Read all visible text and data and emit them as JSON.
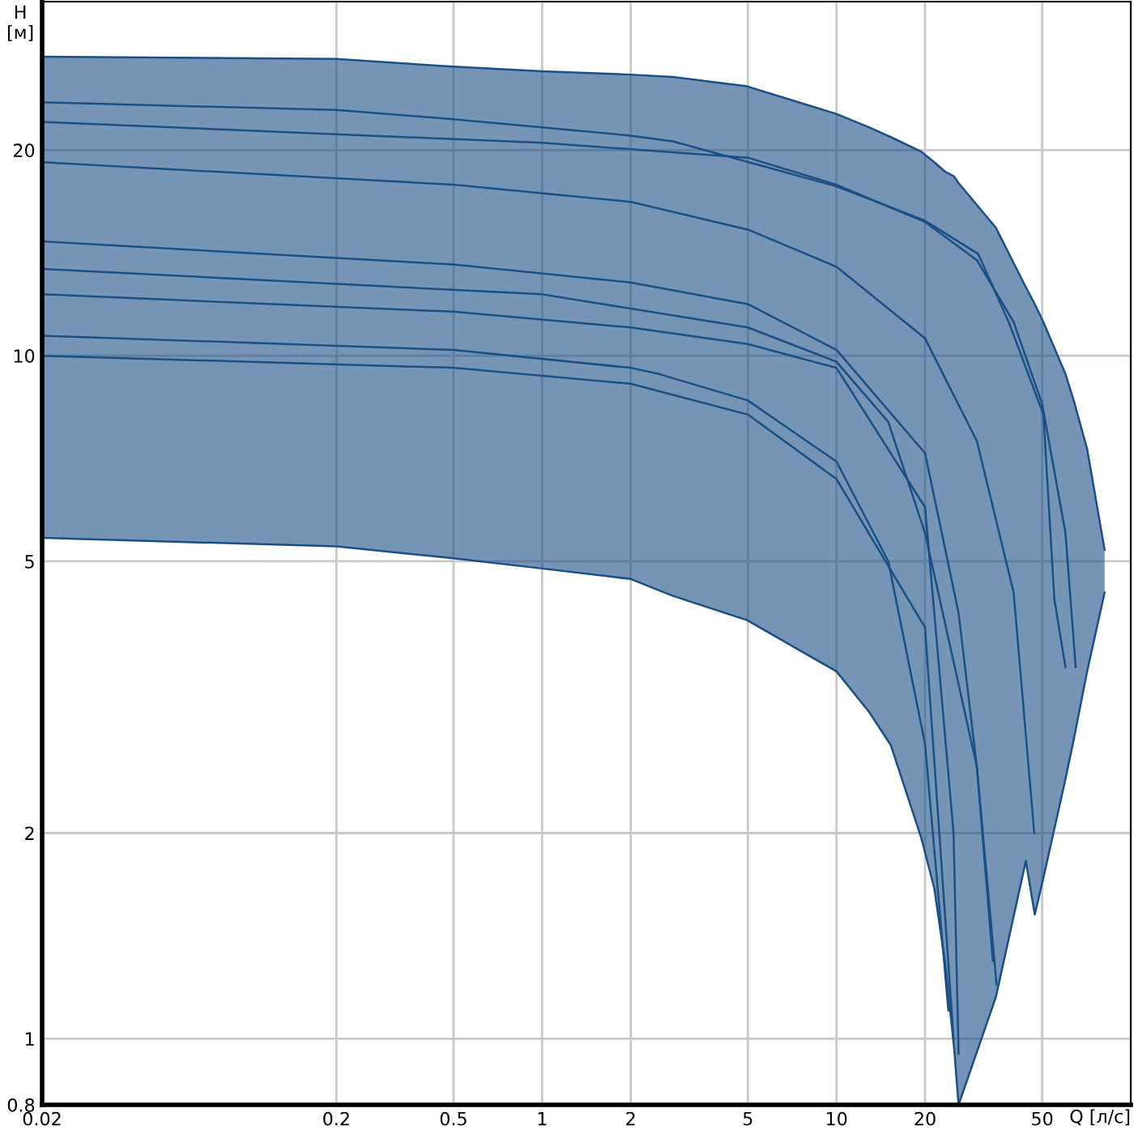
{
  "chart_data": {
    "type": "line",
    "xlabel": "Q [л/с]",
    "ylabel": "H [м]",
    "log": "xy",
    "grid": true,
    "legend": false,
    "marker": "none",
    "line_style": "solid",
    "xlim": [
      0.02,
      100
    ],
    "xticks": [
      0.02,
      0.2,
      0.5,
      1,
      2,
      5,
      10,
      20,
      50
    ],
    "ylim": [
      0.8,
      33
    ],
    "yticks": [
      0.8,
      1,
      2,
      5,
      10,
      20
    ],
    "series": [
      {
        "color": "#1a4f86",
        "x": [
          0.02,
          0.2,
          0.5,
          1,
          2,
          2.78,
          4.97,
          10,
          12.9,
          15.3,
          19.4,
          21.5,
          23.4,
          25.1,
          26,
          34.8,
          44,
          47.2,
          50.5,
          60,
          64,
          71.1,
          81.5
        ],
        "values": [
          27.4,
          27.2,
          26.5,
          26.1,
          25.8,
          25.6,
          24.8,
          22.6,
          21.6,
          20.9,
          19.9,
          19.2,
          18.6,
          18.3,
          17.9,
          15.4,
          12.6,
          11.9,
          11.2,
          9.4,
          8.6,
          7.3,
          5.2
        ],
        "upper": [
          27.4,
          27.2,
          26.5,
          26.1,
          25.8,
          25.6,
          24.8,
          22.6,
          21.6,
          20.9,
          19.9,
          19.2,
          18.6,
          18.3,
          17.9,
          15.4,
          12.6,
          11.9,
          11.2,
          9.4,
          8.6,
          7.3,
          5.2
        ],
        "lower": [
          5.41,
          5.26,
          5.05,
          4.88,
          4.71,
          4.45,
          4.1,
          3.45,
          3.01,
          2.69,
          1.97,
          1.66,
          1.29,
          0.97,
          0.8,
          1.15,
          1.82,
          1.52,
          1.72,
          2.4,
          2.74,
          3.45,
          4.5
        ]
      },
      {
        "color": "#1a4f86",
        "x": [
          0.02,
          0.2,
          0.5,
          1,
          2,
          2.78,
          4.97,
          10,
          12.9,
          15.3,
          19.4,
          21.5,
          23.4,
          25.1,
          26,
          34.8,
          44,
          47.2,
          50.5,
          60,
          64,
          71.1,
          81.5
        ],
        "values": [
          5.41,
          5.26,
          5.05,
          4.88,
          4.71,
          4.45,
          4.1,
          3.45,
          3.01,
          2.69,
          1.97,
          1.66,
          1.29,
          0.97,
          0.8,
          1.15,
          1.82,
          1.52,
          1.72,
          2.4,
          2.74,
          3.45,
          4.5
        ]
      },
      {
        "color": "#1a4f86",
        "x": [
          0.02,
          1,
          5,
          10,
          20,
          30,
          40,
          50,
          60,
          65
        ],
        "values": [
          22,
          20.5,
          19.5,
          17.8,
          15.7,
          13.8,
          11.2,
          8.5,
          5.5,
          3.5
        ]
      },
      {
        "color": "#1a4f86",
        "x": [
          0.02,
          0.2,
          0.5,
          1,
          2,
          2.78,
          10,
          19.8,
          30.3,
          38.5,
          50.5,
          55,
          60
        ],
        "values": [
          23.5,
          22.9,
          22.2,
          21.6,
          21.0,
          20.6,
          17.7,
          15.8,
          14.1,
          11.2,
          8.2,
          4.4,
          3.5
        ]
      },
      {
        "color": "#1a4f86",
        "x": [
          0.02,
          0.5,
          2,
          5,
          10,
          20,
          30,
          40,
          47
        ],
        "values": [
          19.2,
          17.8,
          16.8,
          15.3,
          13.5,
          10.6,
          7.5,
          4.5,
          2.0
        ]
      },
      {
        "color": "#1a4f86",
        "x": [
          0.02,
          0.5,
          2,
          5,
          10,
          20,
          26,
          30,
          35
        ],
        "values": [
          14.7,
          13.6,
          12.8,
          11.9,
          10.2,
          7.2,
          4.2,
          2.5,
          1.2
        ]
      },
      {
        "color": "#1a4f86",
        "x": [
          0.02,
          1,
          5,
          10,
          15,
          20,
          30,
          34
        ],
        "values": [
          13.4,
          12.3,
          11.0,
          9.8,
          8.0,
          5.5,
          2.5,
          1.3
        ]
      },
      {
        "color": "#1a4f86",
        "x": [
          0.02,
          0.5,
          2,
          5,
          10,
          20,
          25,
          26
        ],
        "values": [
          12.3,
          11.6,
          11.0,
          10.4,
          9.6,
          6.0,
          2.0,
          0.95
        ]
      },
      {
        "color": "#1a4f86",
        "x": [
          0.02,
          0.5,
          2,
          2.5,
          5,
          10,
          15,
          20,
          24
        ],
        "values": [
          10.7,
          10.2,
          9.6,
          9.4,
          8.6,
          7.0,
          5.0,
          2.7,
          1.1
        ]
      },
      {
        "color": "#1a4f86",
        "x": [
          0.02,
          0.5,
          2,
          5,
          10,
          20,
          25
        ],
        "values": [
          10.0,
          9.6,
          9.1,
          8.2,
          6.6,
          4.0,
          1.0
        ]
      }
    ]
  }
}
